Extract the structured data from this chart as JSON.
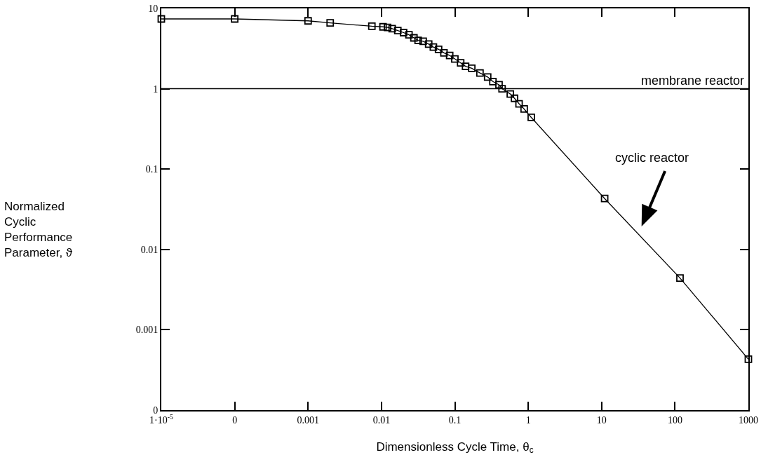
{
  "chart_data": {
    "type": "line",
    "xlabel": "Dimensionless Cycle Time, θ$_{c}$",
    "log": "xy",
    "grid": false,
    "marker": "square",
    "line_style": "solid",
    "xlim": [
      1e-05,
      1000
    ],
    "ylim": [
      0.0001,
      10
    ],
    "xticks": [
      {
        "value": 1e-05,
        "label": "1·10$^{-5}$"
      },
      {
        "value": 0.0001,
        "label": "0"
      },
      0.001,
      0.01,
      0.1,
      1,
      10,
      100,
      1000
    ],
    "yticks": [
      {
        "value": 0.0001,
        "label": "0"
      },
      0.001,
      0.01,
      0.1,
      1,
      10
    ],
    "series": [
      {
        "color": "#000000",
        "x": [
          1e-05,
          0.0001,
          0.001,
          0.002,
          0.0074,
          0.0105,
          0.0121,
          0.014,
          0.0167,
          0.02,
          0.0237,
          0.0277,
          0.0316,
          0.037,
          0.044,
          0.051,
          0.06,
          0.071,
          0.085,
          0.1,
          0.12,
          0.14,
          0.17,
          0.22,
          0.28,
          0.33,
          0.4,
          0.44,
          0.57,
          0.65,
          0.75,
          0.88,
          1.1,
          11,
          117,
          1000
        ],
        "values": [
          7.4,
          7.4,
          7.0,
          6.6,
          6.0,
          5.9,
          5.8,
          5.6,
          5.3,
          5.0,
          4.7,
          4.3,
          4.0,
          3.9,
          3.6,
          3.3,
          3.1,
          2.8,
          2.6,
          2.35,
          2.1,
          1.9,
          1.8,
          1.57,
          1.4,
          1.23,
          1.12,
          1.0,
          0.86,
          0.76,
          0.65,
          0.56,
          0.44,
          0.043,
          0.0044,
          0.00043
        ]
      }
    ],
    "ref_lines": [
      {
        "axis": "y",
        "value": 1,
        "label": "membrane reactor",
        "color": "#000000",
        "line_style": "solid"
      }
    ],
    "annotations": [
      "Normalized\nCyclic\nPerformance\nParameter, ϑ",
      "cyclic reactor"
    ]
  }
}
